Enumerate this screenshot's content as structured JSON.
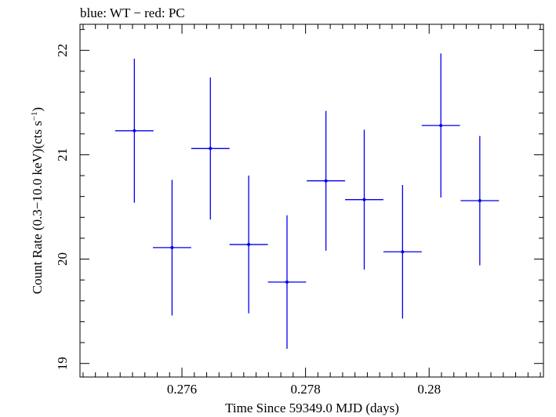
{
  "chart_data": {
    "type": "scatter",
    "title": "blue: WT − red: PC",
    "xlabel": "Time Since 59349.0 MJD (days)",
    "ylabel_main": "Count Rate (0.3−10.0 keV)(cts s",
    "ylabel_sup": "−1",
    "ylabel_close": ")",
    "xlim": [
      0.27435,
      0.28185
    ],
    "ylim": [
      18.87,
      22.25
    ],
    "xticks": [
      0.276,
      0.278,
      0.28
    ],
    "xtick_labels": [
      "0.276",
      "0.278",
      "0.28"
    ],
    "yticks": [
      19,
      20,
      21,
      22
    ],
    "ytick_labels": [
      "19",
      "20",
      "21",
      "22"
    ],
    "grid": false,
    "series": [
      {
        "color": "#0000ee",
        "points": [
          {
            "x": 0.27523,
            "y": 21.23,
            "xerr": 0.00031,
            "yerr": 0.69
          },
          {
            "x": 0.27584,
            "y": 20.11,
            "xerr": 0.00031,
            "yerr": 0.65
          },
          {
            "x": 0.27646,
            "y": 21.06,
            "xerr": 0.00031,
            "yerr": 0.68
          },
          {
            "x": 0.27708,
            "y": 20.14,
            "xerr": 0.00031,
            "yerr": 0.66
          },
          {
            "x": 0.2777,
            "y": 19.78,
            "xerr": 0.00031,
            "yerr": 0.64
          },
          {
            "x": 0.27833,
            "y": 20.75,
            "xerr": 0.00031,
            "yerr": 0.67
          },
          {
            "x": 0.27895,
            "y": 20.57,
            "xerr": 0.00031,
            "yerr": 0.67
          },
          {
            "x": 0.27957,
            "y": 20.07,
            "xerr": 0.00031,
            "yerr": 0.64
          },
          {
            "x": 0.28019,
            "y": 21.28,
            "xerr": 0.00031,
            "yerr": 0.69
          },
          {
            "x": 0.28082,
            "y": 20.56,
            "xerr": 0.00031,
            "yerr": 0.62
          }
        ]
      }
    ]
  }
}
